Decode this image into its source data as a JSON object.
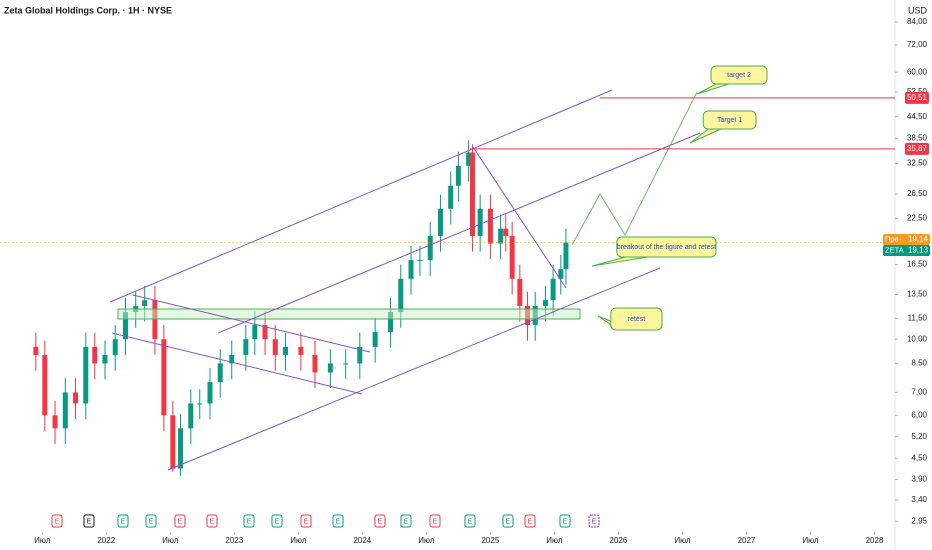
{
  "header": {
    "title": "Zeta Global Holdings Corp. · 1H · NYSE",
    "currency": "USD"
  },
  "chart_data": {
    "type": "candlestick",
    "log_scale": true,
    "up_color": "#089981",
    "down_color": "#f23645",
    "x": [
      2021.45,
      2021.52,
      2021.6,
      2021.68,
      2021.76,
      2021.84,
      2021.91,
      2021.99,
      2022.07,
      2022.15,
      2022.23,
      2022.3,
      2022.38,
      2022.45,
      2022.52,
      2022.58,
      2022.66,
      2022.73,
      2022.81,
      2022.89,
      2022.98,
      2023.09,
      2023.16,
      2023.24,
      2023.32,
      2023.4,
      2023.52,
      2023.63,
      2023.75,
      2023.87,
      2023.98,
      2024.1,
      2024.22,
      2024.3,
      2024.38,
      2024.45,
      2024.53,
      2024.61,
      2024.69,
      2024.75,
      2024.83,
      2024.86,
      2024.92,
      2025.0,
      2025.08,
      2025.12,
      2025.17,
      2025.23,
      2025.29,
      2025.35,
      2025.43,
      2025.49,
      2025.55,
      2025.59
    ],
    "open": [
      9.5,
      9,
      6,
      5.5,
      7,
      6.5,
      9.5,
      8.5,
      9,
      10,
      12,
      12.5,
      13,
      10,
      6,
      4.2,
      5.5,
      6.5,
      6.5,
      7.5,
      8.5,
      9,
      10,
      11,
      10,
      9,
      9.5,
      9,
      8,
      8.5,
      8.5,
      9.5,
      10.5,
      12,
      15,
      17,
      17,
      20,
      24,
      28,
      32,
      35,
      20,
      24,
      19,
      21,
      20,
      15,
      12.5,
      11,
      12.5,
      13,
      15,
      16
    ],
    "high": [
      10.45,
      9.9,
      6.6,
      7.7,
      7.7,
      10.45,
      10.45,
      9.9,
      11,
      13.2,
      13.75,
      14.3,
      14.3,
      11,
      6.6,
      6.05,
      7.15,
      7.15,
      8.25,
      9.35,
      9.9,
      11,
      12.1,
      12.1,
      11,
      10.45,
      10.45,
      9.9,
      9.35,
      9.35,
      10.45,
      11.55,
      13.2,
      16.5,
      18.7,
      18.7,
      22,
      26.4,
      30.8,
      35.2,
      38,
      37,
      26.4,
      26.4,
      23.1,
      23.1,
      22,
      16.5,
      13.75,
      13.75,
      14.3,
      16.5,
      17.6,
      21
    ],
    "low": [
      8.1,
      5.4,
      4.95,
      4.95,
      5.85,
      5.85,
      7.65,
      7.65,
      8.1,
      9,
      10.8,
      11.25,
      9,
      5.4,
      4.1,
      4.0,
      4.95,
      5.85,
      5.85,
      6.75,
      7.65,
      8.1,
      9,
      9,
      8.1,
      8.1,
      8.1,
      7.2,
      7.2,
      7.65,
      7.65,
      8.55,
      9.45,
      10.8,
      13.5,
      15.3,
      15.3,
      18,
      21.6,
      25.2,
      28.8,
      18,
      18,
      17.1,
      17.1,
      18,
      13.5,
      11.25,
      9.9,
      9.9,
      11.25,
      11.7,
      13.5,
      14.4
    ],
    "close": [
      9,
      6,
      5.5,
      7,
      6.5,
      9.5,
      8.5,
      9,
      10,
      12,
      12.5,
      13,
      10,
      6,
      4.2,
      5.5,
      6.5,
      6.5,
      7.5,
      8.5,
      9,
      10,
      11,
      10,
      9,
      9.5,
      9,
      8,
      8.5,
      8.5,
      9.5,
      10.5,
      12,
      15,
      17,
      17,
      20,
      24,
      28,
      32,
      35,
      20,
      24,
      19,
      21,
      20,
      15,
      12.5,
      11,
      12.5,
      13,
      15,
      16,
      19.13
    ],
    "xlim": [
      2021.17,
      2028.16
    ],
    "ylim": [
      2.78,
      97.4
    ],
    "xticks": [
      {
        "value": 2021.5,
        "label": "Июл"
      },
      {
        "value": 2022,
        "label": "2022"
      },
      {
        "value": 2022.5,
        "label": "Июл"
      },
      {
        "value": 2023,
        "label": "2023"
      },
      {
        "value": 2023.5,
        "label": "Июл"
      },
      {
        "value": 2024,
        "label": "2024"
      },
      {
        "value": 2024.5,
        "label": "Июл"
      },
      {
        "value": 2025,
        "label": "2025"
      },
      {
        "value": 2025.5,
        "label": "Июл"
      },
      {
        "value": 2026,
        "label": "2026"
      },
      {
        "value": 2026.5,
        "label": "Июл"
      },
      {
        "value": 2027,
        "label": "2027"
      },
      {
        "value": 2027.5,
        "label": "Июл"
      },
      {
        "value": 2028,
        "label": "2028"
      }
    ],
    "yticks": [
      {
        "value": 2.95,
        "label": "2,95"
      },
      {
        "value": 3.4,
        "label": "3,40"
      },
      {
        "value": 3.9,
        "label": "3,90"
      },
      {
        "value": 4.5,
        "label": "4,50"
      },
      {
        "value": 5.2,
        "label": "5,20"
      },
      {
        "value": 6,
        "label": "6,00"
      },
      {
        "value": 7,
        "label": "7,00"
      },
      {
        "value": 8.5,
        "label": "8,50"
      },
      {
        "value": 10,
        "label": "10,00"
      },
      {
        "value": 11.5,
        "label": "11,50"
      },
      {
        "value": 13.5,
        "label": "13,50"
      },
      {
        "value": 16.5,
        "label": "16,50"
      },
      {
        "value": 22.5,
        "label": "22,50"
      },
      {
        "value": 26.5,
        "label": "26,50"
      },
      {
        "value": 32.5,
        "label": "32,50"
      },
      {
        "value": 38.5,
        "label": "38,50"
      },
      {
        "value": 44.5,
        "label": "44,50"
      },
      {
        "value": 52.5,
        "label": "52,50"
      },
      {
        "value": 60,
        "label": "60,00"
      },
      {
        "value": 72,
        "label": "72,00"
      },
      {
        "value": 84,
        "label": "84,00"
      }
    ],
    "price_lines": [
      {
        "value": 50.51,
        "label": "50,51",
        "color": "#f23645"
      },
      {
        "value": 35.87,
        "label": "35,87",
        "color": "#f23645"
      }
    ],
    "price_tags": [
      {
        "prefix": "Пре·",
        "value": 19.14,
        "label": "19,14",
        "color": "#f59a23"
      },
      {
        "prefix": "ZETA",
        "value": 19.13,
        "label": "19,13",
        "color": "#089981"
      }
    ],
    "annotations": [
      "target 2",
      "Target 1",
      "breakout of the figure and retest",
      "retest"
    ],
    "earnings_markers": [
      "E",
      "E",
      "E",
      "E",
      "E",
      "E",
      "E",
      "E",
      "E",
      "E",
      "E",
      "E",
      "E",
      "E",
      "E",
      "E",
      "E",
      "E"
    ]
  }
}
